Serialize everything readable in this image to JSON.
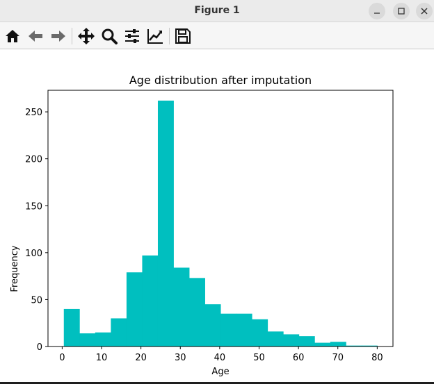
{
  "window": {
    "title": "Figure 1",
    "controls": {
      "minimize": "minimize",
      "maximize": "maximize",
      "close": "close"
    }
  },
  "toolbar": {
    "tools": [
      {
        "name": "home",
        "icon": "home-icon"
      },
      {
        "name": "back",
        "icon": "arrow-left-icon"
      },
      {
        "name": "forward",
        "icon": "arrow-right-icon"
      },
      {
        "name": "pan",
        "icon": "move-icon"
      },
      {
        "name": "zoom",
        "icon": "magnifier-icon"
      },
      {
        "name": "configure-subplots",
        "icon": "sliders-icon"
      },
      {
        "name": "edit-axis",
        "icon": "line-chart-icon"
      },
      {
        "name": "save",
        "icon": "floppy-icon"
      }
    ]
  },
  "colors": {
    "bar": "#00bfbf",
    "frame": "#000000"
  },
  "chart_data": {
    "type": "bar",
    "title": "Age distribution after imputation",
    "xlabel": "Age",
    "ylabel": "Frequency",
    "xlim": [
      -3.6,
      84.0
    ],
    "ylim": [
      0,
      273
    ],
    "xticks": [
      0,
      10,
      20,
      30,
      40,
      50,
      60,
      70,
      80
    ],
    "yticks": [
      0,
      50,
      100,
      150,
      200,
      250
    ],
    "bin_edges": [
      0.42,
      4.4,
      8.38,
      12.36,
      16.34,
      20.32,
      24.3,
      28.28,
      32.26,
      36.24,
      40.22,
      44.2,
      48.18,
      52.16,
      56.14,
      60.12,
      64.1,
      68.08,
      72.06,
      76.04,
      80.0
    ],
    "values": [
      40,
      14,
      15,
      30,
      79,
      97,
      262,
      84,
      73,
      45,
      35,
      35,
      29,
      16,
      13,
      11,
      4,
      5,
      1,
      1
    ],
    "grid": false,
    "legend": "none"
  }
}
